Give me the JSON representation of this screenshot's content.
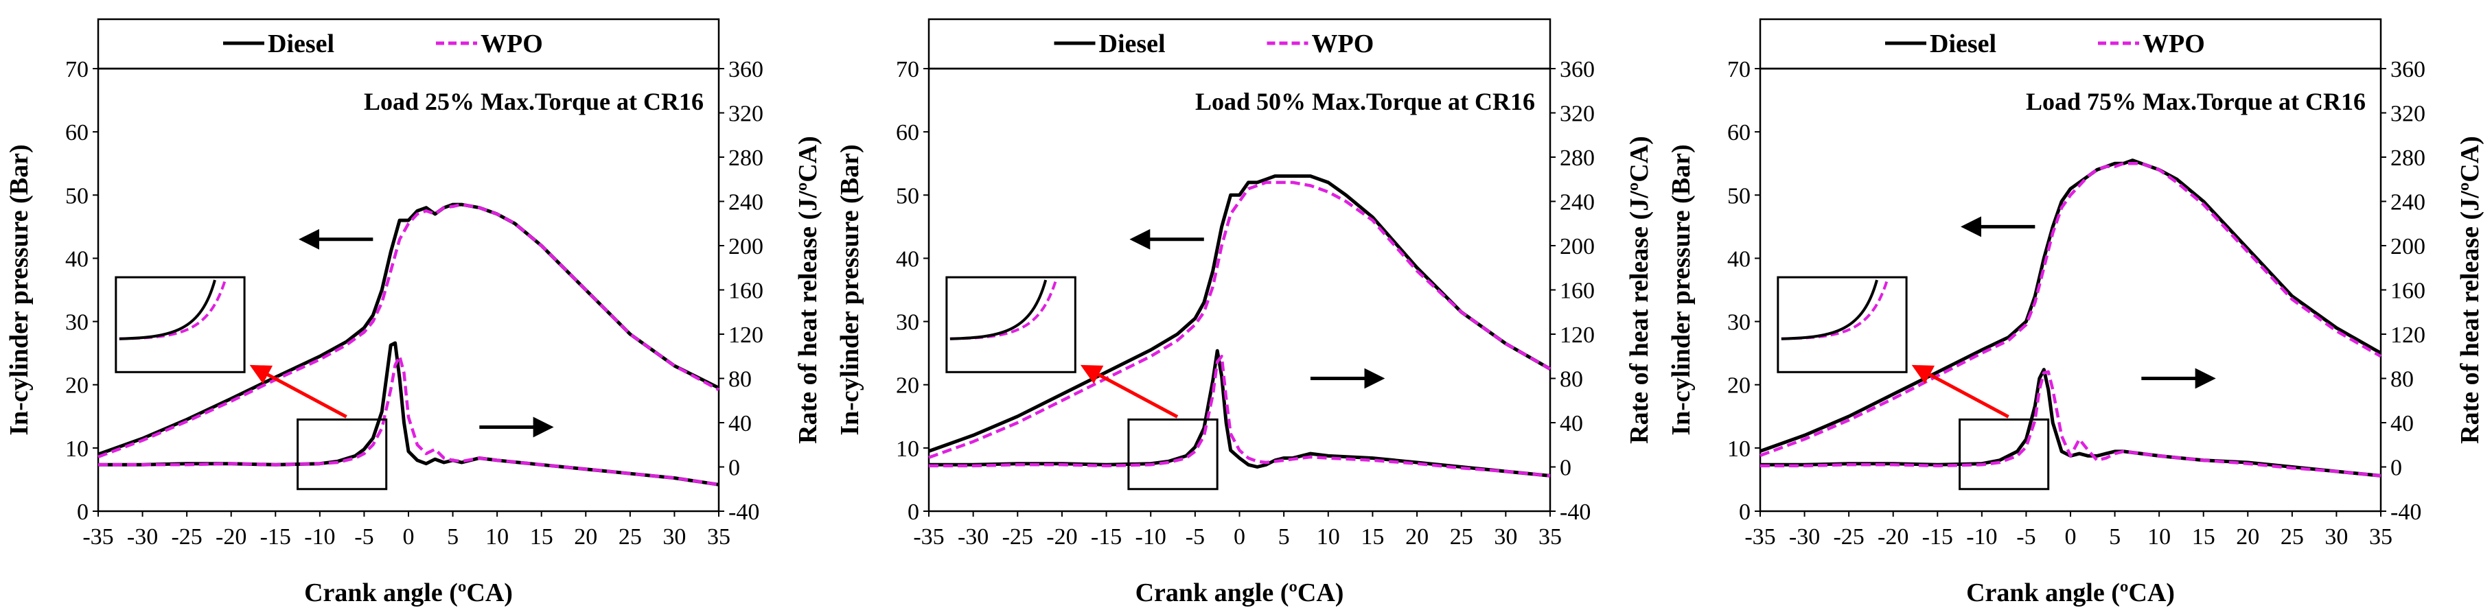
{
  "chart_data": [
    {
      "type": "line",
      "annotation": "Load 25% Max.Torque at CR16",
      "xlabel": "Crank angle (ºCA)",
      "ylabel_left": "In-cylinder pressure (Bar)",
      "ylabel_right": "Rate of heat release (J/ºCA)",
      "xlim": [
        -35,
        35
      ],
      "xticks": [
        "-35",
        "-30",
        "-25",
        "-20",
        "-15",
        "-10",
        "-5",
        "0",
        "5",
        "10",
        "15",
        "20",
        "25",
        "30",
        "35"
      ],
      "ylim_left": [
        0,
        70
      ],
      "yticks_left": [
        "0",
        "10",
        "20",
        "30",
        "40",
        "50",
        "60",
        "70"
      ],
      "ylim_right": [
        -40,
        360
      ],
      "yticks_right": [
        "-40",
        "0",
        "40",
        "80",
        "120",
        "160",
        "200",
        "240",
        "280",
        "320",
        "360"
      ],
      "legend": [
        "Diesel",
        "WPO"
      ],
      "series": [
        {
          "name": "Diesel",
          "axis": "left",
          "color": "#000000",
          "dash": "solid",
          "x": [
            -35,
            -30,
            -25,
            -20,
            -15,
            -10,
            -7,
            -5,
            -4,
            -3,
            -2,
            -1,
            0,
            1,
            2,
            3,
            4,
            5,
            6,
            8,
            10,
            12,
            15,
            20,
            25,
            30,
            35
          ],
          "values": [
            9,
            11.5,
            14.5,
            17.8,
            21.2,
            24.5,
            26.8,
            29,
            31,
            35,
            41,
            46,
            46,
            47.5,
            48,
            47,
            48,
            48.5,
            48.5,
            48,
            47,
            45.5,
            42,
            35,
            28,
            23,
            19.5
          ]
        },
        {
          "name": "WPO",
          "axis": "left",
          "color": "#e020e0",
          "dash": "dashed",
          "x": [
            -35,
            -30,
            -25,
            -20,
            -15,
            -10,
            -7,
            -5,
            -4,
            -3,
            -2,
            -1,
            0,
            1,
            2,
            3,
            4,
            5,
            6,
            8,
            10,
            12,
            15,
            20,
            25,
            30,
            35
          ],
          "values": [
            8.6,
            11.2,
            14.2,
            17.4,
            20.8,
            24,
            26.3,
            28.3,
            30,
            33,
            38,
            43,
            45.5,
            47,
            47.5,
            47,
            48,
            48.2,
            48.5,
            48,
            47,
            45.5,
            42,
            35,
            28,
            23,
            19.2
          ]
        },
        {
          "name": "Diesel",
          "axis": "right",
          "color": "#000000",
          "dash": "solid",
          "x": [
            -35,
            -30,
            -25,
            -20,
            -15,
            -10,
            -8,
            -6,
            -5,
            -4,
            -3,
            -2,
            -1.5,
            -1,
            -0.5,
            0,
            1,
            2,
            3,
            4,
            5,
            6,
            8,
            10,
            15,
            20,
            25,
            30,
            35
          ],
          "values": [
            2,
            2,
            3,
            3,
            2,
            3,
            5,
            10,
            16,
            26,
            50,
            110,
            112,
            80,
            40,
            14,
            6,
            3,
            7,
            4,
            6,
            4,
            8,
            6,
            2,
            -2,
            -6,
            -10,
            -16
          ]
        },
        {
          "name": "WPO",
          "axis": "right",
          "color": "#e020e0",
          "dash": "dashed",
          "x": [
            -35,
            -30,
            -25,
            -20,
            -15,
            -10,
            -8,
            -6,
            -5,
            -4,
            -3,
            -2,
            -1.5,
            -1,
            -0.5,
            0,
            1,
            2,
            3,
            4,
            5,
            6,
            8,
            10,
            15,
            20,
            25,
            30,
            35
          ],
          "values": [
            2,
            2,
            2,
            3,
            2,
            3,
            4,
            8,
            12,
            20,
            35,
            70,
            92,
            100,
            85,
            45,
            20,
            12,
            16,
            8,
            6,
            5,
            8,
            6,
            2,
            -2,
            -6,
            -10,
            -16
          ]
        }
      ]
    },
    {
      "type": "line",
      "annotation": "Load 50% Max.Torque at CR16",
      "xlabel": "Crank angle (ºCA)",
      "ylabel_left": "In-cylinder pressure (Bar)",
      "ylabel_right": "Rate of heat release (J/ºCA)",
      "xlim": [
        -35,
        35
      ],
      "xticks": [
        "-35",
        "-30",
        "-25",
        "-20",
        "-15",
        "-10",
        "-5",
        "0",
        "5",
        "10",
        "15",
        "20",
        "25",
        "30",
        "35"
      ],
      "ylim_left": [
        0,
        70
      ],
      "yticks_left": [
        "0",
        "10",
        "20",
        "30",
        "40",
        "50",
        "60",
        "70"
      ],
      "ylim_right": [
        -40,
        360
      ],
      "yticks_right": [
        "-40",
        "0",
        "40",
        "80",
        "120",
        "160",
        "200",
        "240",
        "280",
        "320",
        "360"
      ],
      "legend": [
        "Diesel",
        "WPO"
      ],
      "series": [
        {
          "name": "Diesel",
          "axis": "left",
          "color": "#000000",
          "dash": "solid",
          "x": [
            -35,
            -30,
            -25,
            -20,
            -15,
            -10,
            -7,
            -5,
            -4,
            -3,
            -2,
            -1,
            0,
            1,
            2,
            3,
            4,
            5,
            6,
            8,
            10,
            12,
            15,
            20,
            25,
            30,
            35
          ],
          "values": [
            9.5,
            12,
            15,
            18.5,
            22,
            25.5,
            28,
            30.5,
            33,
            38,
            45,
            50,
            50,
            52,
            52,
            52.5,
            53,
            53,
            53,
            53,
            52,
            50,
            46.5,
            38.5,
            31.5,
            26.5,
            22.5
          ]
        },
        {
          "name": "WPO",
          "axis": "left",
          "color": "#e020e0",
          "dash": "dashed",
          "x": [
            -35,
            -30,
            -25,
            -20,
            -15,
            -10,
            -7,
            -5,
            -4,
            -3,
            -2,
            -1,
            0,
            1,
            2,
            3,
            4,
            5,
            6,
            8,
            10,
            12,
            15,
            20,
            25,
            30,
            35
          ],
          "values": [
            8.5,
            11,
            14,
            17.5,
            21,
            24.5,
            27,
            29.5,
            31.5,
            35.5,
            42,
            47,
            49,
            51,
            51.5,
            52,
            52,
            52,
            52,
            51.5,
            50.5,
            49,
            46,
            38,
            31.5,
            26.5,
            22.5
          ]
        },
        {
          "name": "Diesel",
          "axis": "right",
          "color": "#000000",
          "dash": "solid",
          "x": [
            -35,
            -30,
            -25,
            -20,
            -15,
            -10,
            -8,
            -6,
            -5,
            -4,
            -3,
            -2.5,
            -2,
            -1.5,
            -1,
            0,
            1,
            2,
            3,
            4,
            5,
            6,
            8,
            10,
            15,
            20,
            25,
            30,
            35
          ],
          "values": [
            2,
            2,
            3,
            3,
            2,
            3,
            5,
            10,
            18,
            35,
            78,
            105,
            82,
            40,
            15,
            8,
            2,
            0,
            2,
            6,
            8,
            8,
            12,
            10,
            8,
            4,
            0,
            -4,
            -8
          ]
        },
        {
          "name": "WPO",
          "axis": "right",
          "color": "#e020e0",
          "dash": "dashed",
          "x": [
            -35,
            -30,
            -25,
            -20,
            -15,
            -10,
            -8,
            -6,
            -5,
            -4,
            -3,
            -2.5,
            -2,
            -1.5,
            -1,
            0,
            1,
            2,
            3,
            4,
            5,
            6,
            8,
            10,
            15,
            20,
            25,
            30,
            35
          ],
          "values": [
            1,
            1,
            2,
            2,
            1,
            2,
            4,
            8,
            14,
            28,
            65,
            95,
            100,
            62,
            30,
            15,
            8,
            5,
            4,
            5,
            6,
            7,
            9,
            8,
            6,
            3,
            -1,
            -4,
            -8
          ]
        }
      ]
    },
    {
      "type": "line",
      "annotation": "Load 75% Max.Torque at CR16",
      "xlabel": "Crank angle (ºCA)",
      "ylabel_left": "In-cylinder pressure (Bar)",
      "ylabel_right": "Rate of heat release (J/ºCA)",
      "xlim": [
        -35,
        35
      ],
      "xticks": [
        "-35",
        "-30",
        "-25",
        "-20",
        "-15",
        "-10",
        "-5",
        "0",
        "5",
        "10",
        "15",
        "20",
        "25",
        "30",
        "35"
      ],
      "ylim_left": [
        0,
        70
      ],
      "yticks_left": [
        "0",
        "10",
        "20",
        "30",
        "40",
        "50",
        "60",
        "70"
      ],
      "ylim_right": [
        -40,
        360
      ],
      "yticks_right": [
        "-40",
        "0",
        "40",
        "80",
        "120",
        "160",
        "200",
        "240",
        "280",
        "320",
        "360"
      ],
      "legend": [
        "Diesel",
        "WPO"
      ],
      "series": [
        {
          "name": "Diesel",
          "axis": "left",
          "color": "#000000",
          "dash": "solid",
          "x": [
            -35,
            -30,
            -25,
            -20,
            -15,
            -10,
            -7,
            -5,
            -4,
            -3,
            -2,
            -1,
            0,
            1,
            2,
            3,
            4,
            5,
            6,
            7,
            8,
            10,
            12,
            15,
            20,
            25,
            30,
            35
          ],
          "values": [
            9.5,
            12,
            15,
            18.5,
            22,
            25.5,
            27.5,
            30,
            34,
            40,
            45,
            49,
            51,
            52,
            53,
            54,
            54.5,
            55,
            55,
            55.5,
            55,
            54,
            52.5,
            49,
            41.5,
            34,
            29,
            25
          ]
        },
        {
          "name": "WPO",
          "axis": "left",
          "color": "#e020e0",
          "dash": "dashed",
          "x": [
            -35,
            -30,
            -25,
            -20,
            -15,
            -10,
            -7,
            -5,
            -4,
            -3,
            -2,
            -1,
            0,
            1,
            2,
            3,
            4,
            5,
            6,
            7,
            8,
            10,
            12,
            15,
            20,
            25,
            30,
            35
          ],
          "values": [
            8.8,
            11.4,
            14.4,
            17.8,
            21.4,
            25,
            27,
            29.5,
            33,
            38.5,
            44,
            48,
            50,
            51.5,
            53,
            54,
            54.5,
            54.5,
            55,
            55,
            55,
            54,
            52,
            48.5,
            41,
            33.5,
            28.5,
            24.5
          ]
        },
        {
          "name": "Diesel",
          "axis": "right",
          "color": "#000000",
          "dash": "solid",
          "x": [
            -35,
            -30,
            -25,
            -20,
            -15,
            -10,
            -8,
            -6,
            -5,
            -4,
            -3.5,
            -3,
            -2.5,
            -2,
            -1,
            0,
            1,
            2,
            3,
            4,
            5,
            6,
            8,
            10,
            15,
            20,
            25,
            30,
            35
          ],
          "values": [
            2,
            2,
            3,
            3,
            2,
            3,
            6,
            14,
            25,
            55,
            80,
            88,
            70,
            40,
            14,
            10,
            12,
            10,
            10,
            12,
            14,
            14,
            12,
            10,
            6,
            4,
            0,
            -4,
            -8
          ]
        },
        {
          "name": "WPO",
          "axis": "right",
          "color": "#e020e0",
          "dash": "dashed",
          "x": [
            -35,
            -30,
            -25,
            -20,
            -15,
            -10,
            -8,
            -6,
            -5,
            -4,
            -3.5,
            -3,
            -2.5,
            -2,
            -1,
            0,
            1,
            2,
            3,
            4,
            5,
            6,
            8,
            10,
            15,
            20,
            25,
            30,
            35
          ],
          "values": [
            1,
            1,
            2,
            2,
            1,
            2,
            4,
            10,
            18,
            42,
            70,
            85,
            86,
            70,
            28,
            10,
            25,
            15,
            6,
            8,
            12,
            14,
            12,
            10,
            6,
            3,
            -1,
            -4,
            -8
          ]
        }
      ]
    }
  ]
}
